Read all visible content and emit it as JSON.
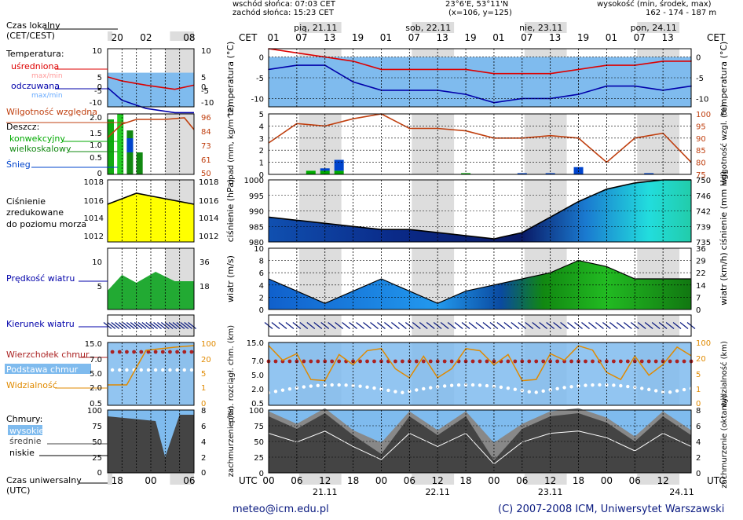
{
  "header": {
    "sunrise": "wschód słońca: 07:03 CET",
    "sunset": "zachód słońca: 15:23 CET",
    "coords": "23°6'E, 53°11'N",
    "grid": "(x=106, y=125)",
    "height_label": "wysokość (min, środek, max)",
    "height_values": "162 - 174 - 187 m"
  },
  "legend": {
    "local_time": "Czas lokalny",
    "local_time_sub": "(CET/CEST)",
    "temperature": "Temperatura:",
    "averaged": "uśredniona",
    "maxmin1": "max/min",
    "perceived": "odczuwana",
    "maxmin2": "max/min",
    "humidity": "Wilgotność względna",
    "rain": "Deszcz:",
    "convective": "konwekcyjny",
    "largescale": "wielkoskalowy",
    "snow": "Śnieg",
    "pressure1": "Ciśnienie",
    "pressure2": "zredukowane",
    "pressure3": "do poziomu morza",
    "wind_speed": "Prędkość wiatru",
    "wind_dir": "Kierunek wiatru",
    "cloud_top": "Wierzchołek chmur",
    "cloud_base": "Podstawa chmur",
    "visibility": "Widzialność",
    "clouds": "Chmury:",
    "high": "wysokie",
    "mid": "średnie",
    "low": "niskie",
    "utc": "Czas uniwersalny",
    "utc_sub": "(UTC)"
  },
  "days": [
    "pią, 21.11",
    "sob, 22.11",
    "nie, 23.11",
    "pon, 24.11"
  ],
  "utc_dates": [
    "21.11",
    "22.11",
    "23.11",
    "24.11"
  ],
  "cet_label": "CET",
  "utc_label": "UTC",
  "cet_ticks": [
    "01",
    "07",
    "13",
    "19",
    "01",
    "07",
    "13",
    "19",
    "01",
    "07",
    "13",
    "19",
    "01",
    "07",
    "13"
  ],
  "utc_ticks": [
    "00",
    "06",
    "12",
    "18",
    "00",
    "06",
    "12",
    "18",
    "00",
    "06",
    "12",
    "18",
    "00",
    "06",
    "12"
  ],
  "left_top_ticks": [
    "20",
    "02",
    "08"
  ],
  "left_bottom_ticks": [
    "18",
    "00",
    "06"
  ],
  "axis_labels": {
    "temp": "temperatura (°C)",
    "rain": "opad (mm, kg/m^2)",
    "hum": "wilgotność wzgl. (%)",
    "press": "ciśnienie (hPa)",
    "press_r": "ciśnienie (mm Hg)",
    "wind": "wiatr (m/s)",
    "wind_r": "wiatr (km/h)",
    "cloud_h": "pion. rozciągł. chm. (km)",
    "vis": "widzialność (km)",
    "cover": "zachmurzenie (%)",
    "cover_r": "zachmurzenie (oktanty)"
  },
  "footer": {
    "email": "meteo@icm.edu.pl",
    "copyright": "(C) 2007-2008 ICM, Uniwersytet Warszawski"
  },
  "colors": {
    "temp_avg": "#dd0000",
    "temp_feel": "#0000aa",
    "humidity": "#c04010",
    "convective": "#00aa00",
    "largescale": "#118811",
    "snow": "#0044cc",
    "pressure_fill": "#ffff00",
    "visibility": "#e08a00",
    "cloud_top": "#aa2222",
    "cloud_base": "#ffffff",
    "blue_band": "#7fbbee"
  },
  "chart_data": [
    {
      "type": "line",
      "name": "temperatura",
      "x_hours_utc": [
        0,
        6,
        12,
        18,
        24,
        30,
        36,
        42,
        48,
        54,
        60,
        66,
        72,
        78,
        84,
        90
      ],
      "series": [
        {
          "name": "uśredniona",
          "values": [
            2,
            1,
            0,
            -1,
            -3,
            -3,
            -3,
            -3,
            -4,
            -4,
            -4,
            -3,
            -2,
            -2,
            -1,
            -1
          ]
        },
        {
          "name": "odczuwana",
          "values": [
            -3,
            -2,
            -2,
            -6,
            -8,
            -8,
            -8,
            -9,
            -11,
            -10,
            -10,
            -9,
            -7,
            -7,
            -8,
            -7
          ]
        }
      ],
      "ylim": [
        -12,
        2
      ],
      "yticks": [
        0,
        -5,
        -10
      ],
      "ylabel": "temperatura (°C)"
    },
    {
      "type": "bar",
      "name": "opad",
      "x_hours_utc": [
        9,
        12,
        15,
        42,
        54,
        60,
        66,
        81
      ],
      "series": [
        {
          "name": "konwekcyjny",
          "values": [
            0.3,
            0.3,
            0.3,
            0.1,
            0,
            0,
            0,
            0
          ]
        },
        {
          "name": "Śnieg",
          "values": [
            0,
            0.2,
            0.9,
            0,
            0.1,
            0.1,
            0.6,
            0.1
          ]
        }
      ],
      "ylim": [
        0,
        5
      ],
      "yticks": [
        0,
        1,
        2,
        3,
        4,
        5
      ],
      "ylabel": "opad (mm, kg/m^2)"
    },
    {
      "type": "line",
      "name": "wilgotność",
      "x_hours_utc": [
        0,
        6,
        12,
        18,
        24,
        30,
        36,
        42,
        48,
        54,
        60,
        66,
        72,
        78,
        84,
        90
      ],
      "series": [
        {
          "name": "wilgotność",
          "values": [
            88,
            96,
            95,
            98,
            100,
            94,
            94,
            93,
            90,
            90,
            91,
            90,
            80,
            90,
            92,
            80
          ]
        }
      ],
      "ylim": [
        75,
        100
      ],
      "yticks": [
        75,
        80,
        85,
        90,
        95,
        100
      ],
      "ylabel": "wilgotność wzgl. (%)"
    },
    {
      "type": "area",
      "name": "ciśnienie",
      "x_hours_utc": [
        0,
        6,
        12,
        18,
        24,
        30,
        36,
        42,
        48,
        54,
        60,
        66,
        72,
        78,
        84,
        90
      ],
      "series": [
        {
          "name": "ciśnienie",
          "values": [
            988,
            987,
            986,
            985,
            984,
            984,
            983,
            982,
            981,
            983,
            988,
            993,
            997,
            999,
            1000,
            1000
          ]
        }
      ],
      "ylim": [
        980,
        1000
      ],
      "yticks": [
        980,
        985,
        990,
        995,
        1000
      ],
      "y2ticks": [
        735,
        739,
        742,
        746,
        750
      ],
      "ylabel": "ciśnienie (hPa)"
    },
    {
      "type": "area",
      "name": "wiatr",
      "x_hours_utc": [
        0,
        6,
        12,
        18,
        24,
        30,
        36,
        42,
        48,
        54,
        60,
        66,
        72,
        78,
        84,
        90
      ],
      "series": [
        {
          "name": "wiatr",
          "values": [
            5,
            3,
            1,
            3,
            5,
            3,
            1,
            3,
            4,
            5,
            6,
            8,
            7,
            5,
            5,
            5
          ]
        }
      ],
      "ylim": [
        0,
        10
      ],
      "yticks": [
        0,
        2,
        4,
        6,
        8,
        10
      ],
      "y2ticks": [
        0,
        7,
        14,
        22,
        29,
        36
      ],
      "ylabel": "wiatr (m/s)"
    },
    {
      "type": "line",
      "name": "zachmurzenie",
      "x_hours_utc": [
        0,
        6,
        12,
        18,
        24,
        30,
        36,
        42,
        48,
        54,
        60,
        66,
        72,
        78,
        84,
        90
      ],
      "series": [
        {
          "name": "zachmurzenie",
          "values": [
            90,
            70,
            95,
            60,
            30,
            90,
            60,
            90,
            20,
            70,
            90,
            95,
            80,
            50,
            90,
            60
          ]
        }
      ],
      "ylim": [
        0,
        100
      ],
      "yticks": [
        0,
        25,
        50,
        75,
        100
      ],
      "y2ticks": [
        0,
        2,
        4,
        6,
        8
      ],
      "ylabel": "zachmurzenie (%)"
    }
  ]
}
